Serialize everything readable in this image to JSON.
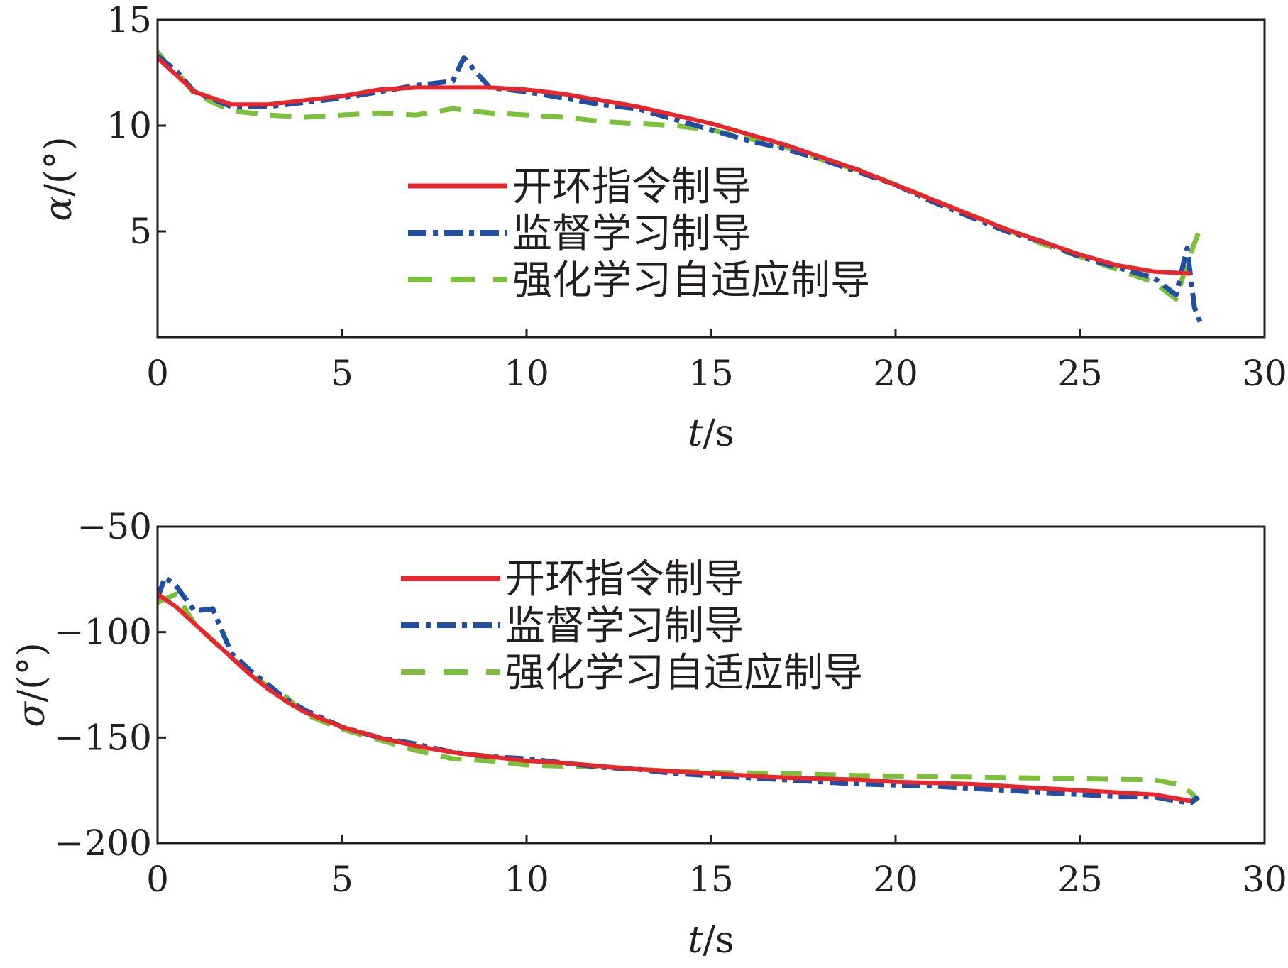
{
  "colors": {
    "open_loop": "#e8262b",
    "supervised": "#1f4fa3",
    "rl_adaptive": "#7cbf3a",
    "axis": "#231f20"
  },
  "chart_data": [
    {
      "type": "line",
      "xlabel_var": "t",
      "xlabel_unit": "/s",
      "ylabel_var": "α",
      "ylabel_unit": "/(°)",
      "xlim": [
        0,
        30
      ],
      "ylim": [
        0,
        15
      ],
      "xticks": [
        0,
        5,
        10,
        15,
        20,
        25,
        30
      ],
      "yticks": [
        5,
        10,
        15
      ],
      "legend_position": "center",
      "series": [
        {
          "name": "开环指令制导",
          "color_key": "open_loop",
          "style": "solid",
          "x": [
            0,
            0.5,
            1,
            2,
            3,
            4,
            5,
            6,
            7,
            8,
            9,
            10,
            11,
            12,
            13,
            14,
            15,
            16,
            17,
            18,
            19,
            20,
            21,
            22,
            23,
            24,
            25,
            26,
            27,
            28
          ],
          "y": [
            13.2,
            12.4,
            11.6,
            11.0,
            11.0,
            11.2,
            11.4,
            11.7,
            11.8,
            11.8,
            11.8,
            11.7,
            11.5,
            11.2,
            10.9,
            10.5,
            10.1,
            9.6,
            9.1,
            8.5,
            7.9,
            7.2,
            6.5,
            5.8,
            5.1,
            4.5,
            3.9,
            3.4,
            3.1,
            3.0
          ]
        },
        {
          "name": "监督学习制导",
          "color_key": "supervised",
          "style": "dashdot",
          "x": [
            0,
            0.5,
            1,
            2,
            3,
            4,
            5,
            6,
            7,
            8,
            8.3,
            9,
            10,
            11,
            12,
            13,
            14,
            15,
            16,
            17,
            18,
            19,
            20,
            21,
            22,
            23,
            24,
            25,
            26,
            27,
            27.6,
            27.9,
            28.1,
            28.3
          ],
          "y": [
            13.3,
            12.6,
            11.6,
            10.9,
            10.9,
            11.1,
            11.3,
            11.6,
            11.9,
            12.1,
            13.2,
            11.8,
            11.6,
            11.3,
            11.0,
            10.8,
            10.3,
            9.8,
            9.3,
            8.9,
            8.4,
            7.8,
            7.2,
            6.4,
            5.7,
            5.0,
            4.5,
            3.8,
            3.3,
            2.8,
            2.0,
            4.2,
            1.4,
            0.5
          ]
        },
        {
          "name": "强化学习自适应制导",
          "color_key": "rl_adaptive",
          "style": "dashed",
          "x": [
            0,
            0.3,
            0.5,
            1,
            2,
            3,
            4,
            5,
            6,
            7,
            8,
            9,
            10,
            11,
            12,
            13,
            14,
            15,
            16,
            17,
            18,
            19,
            20,
            21,
            22,
            23,
            24,
            25,
            26,
            27,
            27.6,
            27.9,
            28.2
          ],
          "y": [
            13.5,
            12.8,
            12.6,
            11.5,
            10.7,
            10.5,
            10.4,
            10.5,
            10.6,
            10.5,
            10.8,
            10.6,
            10.5,
            10.4,
            10.2,
            10.1,
            10.0,
            9.8,
            9.4,
            9.0,
            8.4,
            7.9,
            7.2,
            6.5,
            5.8,
            5.1,
            4.4,
            3.8,
            3.2,
            2.6,
            1.8,
            3.5,
            4.9
          ]
        }
      ]
    },
    {
      "type": "line",
      "xlabel_var": "t",
      "xlabel_unit": "/s",
      "ylabel_var": "σ",
      "ylabel_unit": "/(°)",
      "xlim": [
        0,
        30
      ],
      "ylim": [
        -200,
        -50
      ],
      "xticks": [
        0,
        5,
        10,
        15,
        20,
        25,
        30
      ],
      "yticks": [
        -200,
        -150,
        -100,
        -50
      ],
      "legend_position": "top-center",
      "series": [
        {
          "name": "开环指令制导",
          "color_key": "open_loop",
          "style": "solid",
          "x": [
            0,
            0.5,
            1,
            1.5,
            2,
            2.5,
            3,
            3.5,
            4,
            5,
            6,
            7,
            8,
            9,
            10,
            11,
            12,
            13,
            14,
            15,
            16,
            17,
            18,
            19,
            20,
            21,
            22,
            23,
            24,
            25,
            26,
            27,
            28
          ],
          "y": [
            -82,
            -88,
            -96,
            -104,
            -112,
            -120,
            -127,
            -133,
            -138,
            -145,
            -150,
            -154,
            -157,
            -159,
            -161,
            -162,
            -163.5,
            -165,
            -166,
            -167,
            -168,
            -169,
            -169.5,
            -170,
            -171,
            -171.5,
            -172,
            -173,
            -174,
            -175,
            -176,
            -177,
            -180
          ]
        },
        {
          "name": "监督学习制导",
          "color_key": "supervised",
          "style": "dashdot",
          "x": [
            0,
            0.2,
            0.5,
            1,
            1.5,
            2,
            2.5,
            3,
            3.5,
            4,
            5,
            6,
            7,
            8,
            9,
            10,
            11,
            12,
            13,
            14,
            15,
            16,
            17,
            18,
            19,
            20,
            21,
            22,
            23,
            24,
            25,
            26,
            27,
            27.6,
            28,
            28.2
          ],
          "y": [
            -84,
            -74,
            -78,
            -90,
            -89,
            -110,
            -118,
            -125,
            -132,
            -137,
            -145,
            -150,
            -153,
            -157,
            -159,
            -160,
            -162,
            -164,
            -165,
            -167,
            -168,
            -169,
            -170,
            -171,
            -172,
            -172.5,
            -173,
            -174,
            -175,
            -176,
            -177,
            -178,
            -178,
            -180,
            -181,
            -178
          ]
        },
        {
          "name": "强化学习自适应制导",
          "color_key": "rl_adaptive",
          "style": "dashed",
          "x": [
            0,
            0.5,
            1,
            1.5,
            2,
            2.5,
            3,
            3.5,
            4,
            5,
            6,
            7,
            8,
            9,
            10,
            11,
            12,
            13,
            14,
            15,
            16,
            17,
            18,
            19,
            20,
            21,
            22,
            23,
            24,
            25,
            26,
            27,
            27.6,
            28,
            28.2
          ],
          "y": [
            -86,
            -82,
            -96,
            -104,
            -112,
            -119,
            -126,
            -131,
            -139,
            -146,
            -151,
            -156,
            -160,
            -161,
            -163,
            -163.5,
            -164,
            -165,
            -166,
            -166.5,
            -166.8,
            -167,
            -167.5,
            -168,
            -168.2,
            -168.5,
            -168.7,
            -169,
            -169.2,
            -169.5,
            -169.8,
            -170,
            -172,
            -176,
            -180
          ]
        }
      ]
    }
  ]
}
